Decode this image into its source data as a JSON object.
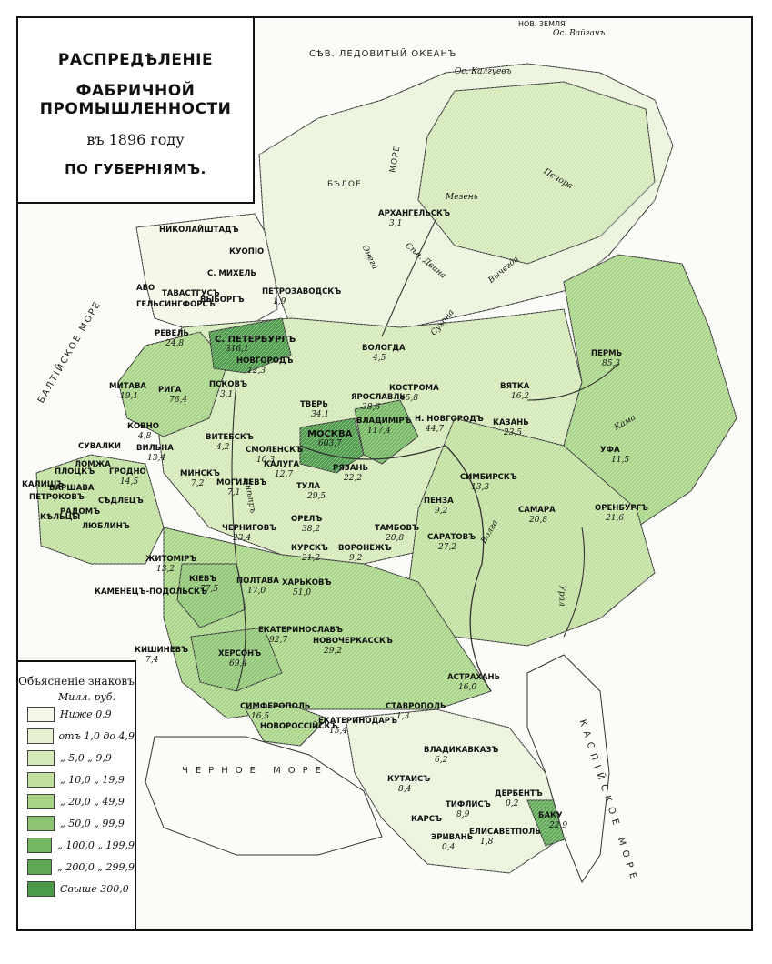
{
  "title": {
    "line1": "РАСПРЕДѢЛЕНІЕ",
    "line2": "ФАБРИЧНОЙ ПРОМЫШЛЕННОСТИ",
    "line3": "въ 1896 году",
    "line4": "ПО ГУБЕРНІЯМЪ."
  },
  "seas": {
    "arctic": "СѢВ. ЛЕДОВИТЫЙ ОКЕАНЪ",
    "baltic": "БАЛТІЙСКОЕ МОРЕ",
    "black": "ЧЕРНОЕ МОРЕ",
    "caspian": "КАСПІЙСКОЕ МОРЕ",
    "white": "БѢЛОЕ",
    "white2": "МОРЕ"
  },
  "islands": {
    "novaya_zemlya": "НОВ. ЗЕМЛЯ",
    "vaygach": "Ос. Вайгачъ",
    "kolguev": "Ос. Калгуевъ"
  },
  "rivers": [
    "Печора",
    "Мезень",
    "Онега",
    "Сѣв. Двина",
    "Вычегда",
    "Сухона",
    "Волга",
    "Урал",
    "Кама",
    "Днѣпръ"
  ],
  "legend": {
    "title": "Объясненіе знаковъ",
    "unit": "Милл. руб.",
    "items": [
      {
        "label": "Ниже 0,9",
        "color": "#f4f8e8"
      },
      {
        "label": "отъ 1,0 до 4,9",
        "color": "#e6f1d2"
      },
      {
        "label": "„ 5,0 „ 9,9",
        "color": "#d4e9b8"
      },
      {
        "label": "„ 10,0 „ 19,9",
        "color": "#c1e09e"
      },
      {
        "label": "„ 20,0 „ 49,9",
        "color": "#a8d486"
      },
      {
        "label": "„ 50,0 „ 99,9",
        "color": "#8ec573"
      },
      {
        "label": "„ 100,0 „ 199,9",
        "color": "#74b761"
      },
      {
        "label": "„ 200,0 „ 299,9",
        "color": "#5ea854"
      },
      {
        "label": "Свыше 300,0",
        "color": "#4b9a48"
      }
    ]
  },
  "provinces": [
    {
      "name": "НИКОЛАЙШТАДЪ",
      "value": ""
    },
    {
      "name": "КУОПІО",
      "value": ""
    },
    {
      "name": "С. МИХЕЛЬ",
      "value": ""
    },
    {
      "name": "АБО",
      "value": ""
    },
    {
      "name": "ТАВАСТГУСЪ",
      "value": ""
    },
    {
      "name": "ГЕЛЬСИНГФОРСЪ",
      "value": ""
    },
    {
      "name": "ВЫБОРГЪ",
      "value": ""
    },
    {
      "name": "ПЕТРОЗАВОДСКЪ",
      "value": "1,9"
    },
    {
      "name": "АРХАНГЕЛЬСКЪ",
      "value": "3,1"
    },
    {
      "name": "ВОЛОГДА",
      "value": "4,5"
    },
    {
      "name": "С. ПЕТЕРБУРГЪ",
      "value": "316,1"
    },
    {
      "name": "НОВГОРОДЪ",
      "value": "12,3"
    },
    {
      "name": "РЕВЕЛЬ",
      "value": "24,8"
    },
    {
      "name": "РИГА",
      "value": "76,4"
    },
    {
      "name": "МИТАВА",
      "value": "19,1"
    },
    {
      "name": "ПСКОВЪ",
      "value": "3,1"
    },
    {
      "name": "ТВЕРЬ",
      "value": "34,1"
    },
    {
      "name": "ЯРОСЛАВЛЬ",
      "value": "38,6"
    },
    {
      "name": "КОСТРОМА",
      "value": "45,8"
    },
    {
      "name": "ВЛАДИМІРЪ",
      "value": "117,4"
    },
    {
      "name": "МОСКВА",
      "value": "603,7"
    },
    {
      "name": "Н. НОВГОРОДЪ",
      "value": "44,7"
    },
    {
      "name": "КАЗАНЬ",
      "value": "23,5"
    },
    {
      "name": "ВЯТКА",
      "value": "16,2"
    },
    {
      "name": "ПЕРМЬ",
      "value": "85,3"
    },
    {
      "name": "УФА",
      "value": "11,5"
    },
    {
      "name": "ОРЕНБУРГЪ",
      "value": "21,6"
    },
    {
      "name": "САМАРА",
      "value": "20,8"
    },
    {
      "name": "СИМБИРСКЪ",
      "value": "13,3"
    },
    {
      "name": "ПЕНЗА",
      "value": "9,2"
    },
    {
      "name": "САРАТОВЪ",
      "value": "27,2"
    },
    {
      "name": "ТАМБОВЪ",
      "value": "20,8"
    },
    {
      "name": "РЯЗАНЬ",
      "value": "22,2"
    },
    {
      "name": "ТУЛА",
      "value": "29,5"
    },
    {
      "name": "КАЛУГА",
      "value": "12,7"
    },
    {
      "name": "СМОЛЕНСКЪ",
      "value": "10,3"
    },
    {
      "name": "ВИТЕБСКЪ",
      "value": "4,2"
    },
    {
      "name": "ВИЛЬНА",
      "value": "13,4"
    },
    {
      "name": "КОВНО",
      "value": "4,8"
    },
    {
      "name": "ГРОДНО",
      "value": "14,5"
    },
    {
      "name": "МИНСКЪ",
      "value": "7,2"
    },
    {
      "name": "МОГИЛЕВЪ",
      "value": "7,1"
    },
    {
      "name": "ОРЕЛЪ",
      "value": "38,2"
    },
    {
      "name": "ЧЕРНИГОВЪ",
      "value": "23,4"
    },
    {
      "name": "КУРСКЪ",
      "value": "21,2"
    },
    {
      "name": "ВОРОНЕЖЪ",
      "value": "9,2"
    },
    {
      "name": "ЖИТОМІРЪ",
      "value": "13,2"
    },
    {
      "name": "КІЕВЪ",
      "value": "77,5"
    },
    {
      "name": "ПОЛТАВА",
      "value": "17,0"
    },
    {
      "name": "ХАРЬКОВЪ",
      "value": "51,0"
    },
    {
      "name": "ЕКАТЕРИНОСЛАВЪ",
      "value": "92,7"
    },
    {
      "name": "НОВОЧЕРКАССКЪ",
      "value": "29,2"
    },
    {
      "name": "ХЕРСОНЪ",
      "value": "69,4"
    },
    {
      "name": "КИШИНЕВЪ",
      "value": "7,4"
    },
    {
      "name": "КАМЕНЕЦЪ-ПОДОЛЬСКЪ",
      "value": ""
    },
    {
      "name": "СИМФЕРОПОЛЬ",
      "value": "16,5"
    },
    {
      "name": "АСТРАХАНЬ",
      "value": "16,0"
    },
    {
      "name": "СТАВРОПОЛЬ",
      "value": "1,3"
    },
    {
      "name": "ЕКАТЕРИНОДАРЪ",
      "value": "15,4"
    },
    {
      "name": "НОВОРОССІЙСКЪ",
      "value": ""
    },
    {
      "name": "ВЛАДИКАВКАЗЪ",
      "value": "6,2"
    },
    {
      "name": "КУТАИСЪ",
      "value": "8,4"
    },
    {
      "name": "ТИФЛИСЪ",
      "value": "8,9"
    },
    {
      "name": "ДЕРБЕНТЪ",
      "value": "0,2"
    },
    {
      "name": "БАКУ",
      "value": "22,9"
    },
    {
      "name": "ЕЛИСАВЕТПОЛЬ",
      "value": "1,8"
    },
    {
      "name": "ЭРИВАНЬ",
      "value": "0,4"
    },
    {
      "name": "КАРСЪ",
      "value": ""
    },
    {
      "name": "СУВАЛКИ",
      "value": ""
    },
    {
      "name": "ПЛОЦКЪ",
      "value": ""
    },
    {
      "name": "ВАРШАВА",
      "value": ""
    },
    {
      "name": "СѢДЛЕЦЪ",
      "value": ""
    },
    {
      "name": "ЛЮБЛИНЪ",
      "value": ""
    },
    {
      "name": "РАДОМЪ",
      "value": ""
    },
    {
      "name": "КѢЛЬЦЫ",
      "value": ""
    },
    {
      "name": "ПЕТРОКОВЪ",
      "value": ""
    },
    {
      "name": "КАЛИШЪ",
      "value": ""
    },
    {
      "name": "ЛОМЖА",
      "value": ""
    }
  ]
}
